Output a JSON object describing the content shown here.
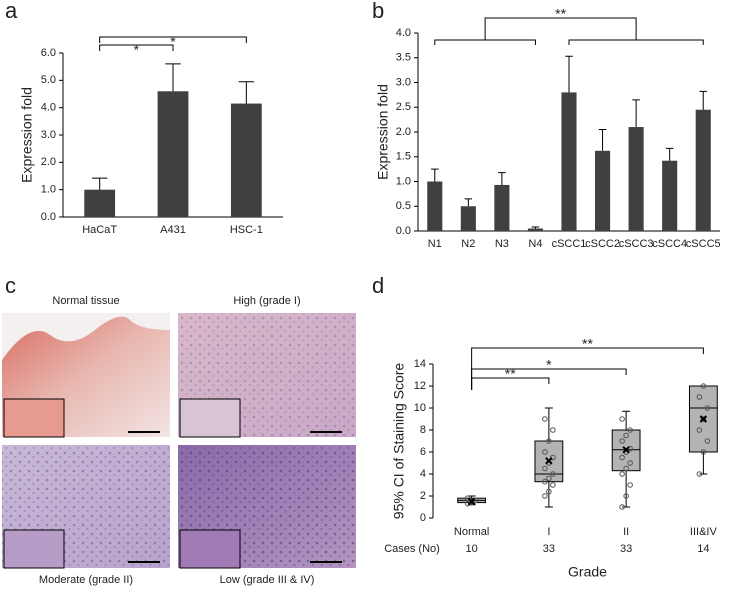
{
  "chart_data": [
    {
      "type": "bar",
      "panel_label": "a",
      "ylabel": "Expression fold",
      "categories": [
        "HaCaT",
        "A431",
        "HSC-1"
      ],
      "values": [
        1.0,
        4.6,
        4.15
      ],
      "errors": [
        0.42,
        1.0,
        0.8
      ],
      "color": "#404040",
      "ylim": [
        0,
        6
      ],
      "yticks": [
        {
          "value": 0,
          "label": "0.0"
        },
        {
          "value": 1,
          "label": "1.0"
        },
        {
          "value": 2,
          "label": "2.0"
        },
        {
          "value": 3,
          "label": "3.0"
        },
        {
          "value": 4,
          "label": "4.0"
        },
        {
          "value": 5,
          "label": "5.0"
        },
        {
          "value": 6,
          "label": "6.0"
        }
      ],
      "brackets": [
        {
          "label": "*",
          "between": [
            0,
            1
          ]
        },
        {
          "label": "*",
          "between": [
            0,
            2
          ]
        }
      ]
    },
    {
      "type": "bar",
      "panel_label": "b",
      "ylabel": "Expression  fold",
      "categories": [
        "N1",
        "N2",
        "N3",
        "N4",
        "cSCC1",
        "cSCC2",
        "cSCC3",
        "cSCC4",
        "cSCC5"
      ],
      "values": [
        1.0,
        0.5,
        0.93,
        0.05,
        2.8,
        1.62,
        2.1,
        1.42,
        2.45
      ],
      "errors": [
        0.25,
        0.15,
        0.25,
        0.03,
        0.73,
        0.43,
        0.55,
        0.25,
        0.37
      ],
      "color": "#404040",
      "ylim": [
        0,
        4
      ],
      "yticks": [
        {
          "value": 0,
          "label": "0.0"
        },
        {
          "value": 0.5,
          "label": "0.5"
        },
        {
          "value": 1,
          "label": "1.0"
        },
        {
          "value": 1.5,
          "label": "1.5"
        },
        {
          "value": 2,
          "label": "2.0"
        },
        {
          "value": 2.5,
          "label": "2.5"
        },
        {
          "value": 3,
          "label": "3.0"
        },
        {
          "value": 3.5,
          "label": "3.5"
        },
        {
          "value": 4,
          "label": "4.0"
        }
      ],
      "group_bracket": {
        "label": "**",
        "groups": [
          [
            0,
            3
          ],
          [
            4,
            8
          ]
        ]
      }
    },
    {
      "type": "box",
      "panel_label": "d",
      "ylabel": "95% CI of Staining Score",
      "xlabel": "Grade",
      "categories": [
        "Normal",
        "I",
        "II",
        "III&IV"
      ],
      "min": [
        1.2,
        1,
        1,
        4
      ],
      "q1": [
        1.4,
        3.3,
        4.3,
        6
      ],
      "median": [
        1.6,
        4,
        6.2,
        10
      ],
      "q3": [
        1.8,
        7,
        8,
        12
      ],
      "max": [
        2,
        10,
        9.7,
        12
      ],
      "mean": [
        1.5,
        5.2,
        6.2,
        9
      ],
      "points": [
        [
          1.3,
          1.5,
          1.6,
          1.8,
          1.4
        ],
        [
          2,
          2.4,
          3,
          3.3,
          3.6,
          4,
          4.5,
          5,
          5.5,
          6,
          7,
          8,
          9
        ],
        [
          1,
          2,
          3,
          4,
          4.5,
          5,
          5.5,
          6,
          6.3,
          7,
          7.5,
          8,
          9
        ],
        [
          4,
          6,
          7,
          8,
          9,
          10,
          11,
          12
        ]
      ],
      "cases_label": "Cases (No)",
      "cases": [
        10,
        33,
        33,
        14
      ],
      "box_color": "#b3b3b3",
      "ylim": [
        0,
        14
      ],
      "yticks": [
        0,
        2,
        4,
        6,
        8,
        10,
        12,
        14
      ],
      "brackets": [
        {
          "label": "**",
          "between": [
            0,
            1
          ]
        },
        {
          "label": "*",
          "between": [
            0,
            2
          ]
        },
        {
          "label": "**",
          "between": [
            0,
            3
          ]
        }
      ]
    }
  ],
  "panel_c": {
    "panel_label": "c",
    "captions": [
      "Normal tissue",
      "High (grade I)",
      "Moderate (grade II)",
      "Low (grade III & IV)"
    ]
  }
}
